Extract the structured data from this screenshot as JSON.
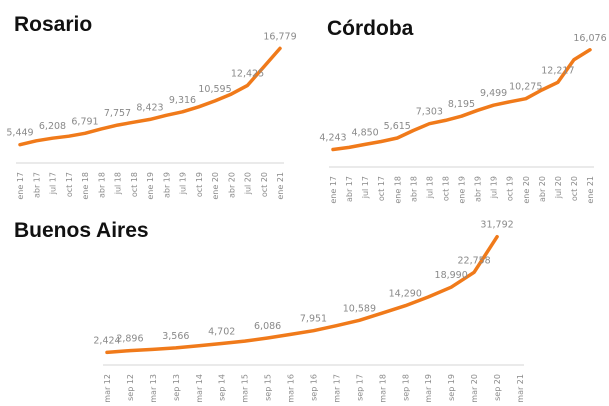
{
  "colors": {
    "line": "#F07A1A",
    "axis": "#d4d4d4",
    "label": "#8a8a8a",
    "title": "#111111"
  },
  "chart_data": [
    {
      "type": "line",
      "title": "Rosario",
      "xlabel": "",
      "ylabel": "",
      "grid": false,
      "ylim": [
        4000,
        18000
      ],
      "x": [
        "ene 17",
        "abr 17",
        "jul 17",
        "oct 17",
        "ene 18",
        "abr 18",
        "jul 18",
        "oct 18",
        "ene 19",
        "abr 19",
        "jul 19",
        "oct 19",
        "ene 20",
        "abr 20",
        "jul 20",
        "oct 20",
        "ene 21"
      ],
      "series": [
        {
          "values": [
            5449,
            5900,
            6208,
            6450,
            6791,
            7300,
            7757,
            8100,
            8423,
            8900,
            9316,
            9900,
            10595,
            11400,
            12425,
            14600,
            16779
          ]
        }
      ],
      "data_labels": [
        {
          "i": 0,
          "text": "5,449"
        },
        {
          "i": 2,
          "text": "6,208"
        },
        {
          "i": 4,
          "text": "6,791"
        },
        {
          "i": 6,
          "text": "7,757"
        },
        {
          "i": 8,
          "text": "8,423"
        },
        {
          "i": 10,
          "text": "9,316"
        },
        {
          "i": 12,
          "text": "10,595"
        },
        {
          "i": 14,
          "text": "12,425"
        },
        {
          "i": 16,
          "text": "16,779"
        }
      ]
    },
    {
      "type": "line",
      "title": "Córdoba",
      "xlabel": "",
      "ylabel": "",
      "grid": false,
      "ylim": [
        3000,
        17000
      ],
      "x": [
        "ene 17",
        "abr 17",
        "jul 17",
        "oct 17",
        "ene 18",
        "abr 18",
        "jul 18",
        "oct 18",
        "ene 19",
        "abr 19",
        "jul 19",
        "oct 19",
        "ene 20",
        "abr 20",
        "jul 20",
        "oct 20",
        "ene 21"
      ],
      "series": [
        {
          "values": [
            4243,
            4500,
            4850,
            5200,
            5615,
            6500,
            7303,
            7700,
            8195,
            8900,
            9499,
            9900,
            10275,
            11300,
            12217,
            14900,
            16076
          ]
        }
      ],
      "data_labels": [
        {
          "i": 0,
          "text": "4,243"
        },
        {
          "i": 2,
          "text": "4,850"
        },
        {
          "i": 4,
          "text": "5,615"
        },
        {
          "i": 6,
          "text": "7,303"
        },
        {
          "i": 8,
          "text": "8,195"
        },
        {
          "i": 10,
          "text": "9,499"
        },
        {
          "i": 12,
          "text": "10,275"
        },
        {
          "i": 14,
          "text": "12,217"
        },
        {
          "i": 16,
          "text": "16,076"
        }
      ]
    },
    {
      "type": "line",
      "title": "Buenos Aires",
      "xlabel": "",
      "ylabel": "",
      "grid": false,
      "ylim": [
        0,
        34000
      ],
      "x": [
        "mar 12",
        "sep 12",
        "mar 13",
        "sep 13",
        "mar 14",
        "sep 14",
        "mar 15",
        "sep 15",
        "mar 16",
        "sep 16",
        "mar 17",
        "sep 17",
        "mar 18",
        "sep 18",
        "mar 19",
        "sep 19",
        "mar 20",
        "sep 20",
        "mar 21"
      ],
      "series": [
        {
          "values": [
            2424,
            2896,
            3200,
            3566,
            4100,
            4702,
            5300,
            6086,
            7000,
            7951,
            9200,
            10589,
            12400,
            14290,
            16500,
            18990,
            22758,
            31792,
            null
          ]
        }
      ],
      "data_labels": [
        {
          "i": 0,
          "text": "2,424"
        },
        {
          "i": 1,
          "text": "2,896"
        },
        {
          "i": 3,
          "text": "3,566"
        },
        {
          "i": 5,
          "text": "4,702"
        },
        {
          "i": 7,
          "text": "6,086"
        },
        {
          "i": 9,
          "text": "7,951"
        },
        {
          "i": 11,
          "text": "10,589"
        },
        {
          "i": 13,
          "text": "14,290"
        },
        {
          "i": 15,
          "text": "18,990"
        },
        {
          "i": 16,
          "text": "22,758"
        },
        {
          "i": 17,
          "text": "31,792"
        }
      ]
    }
  ]
}
